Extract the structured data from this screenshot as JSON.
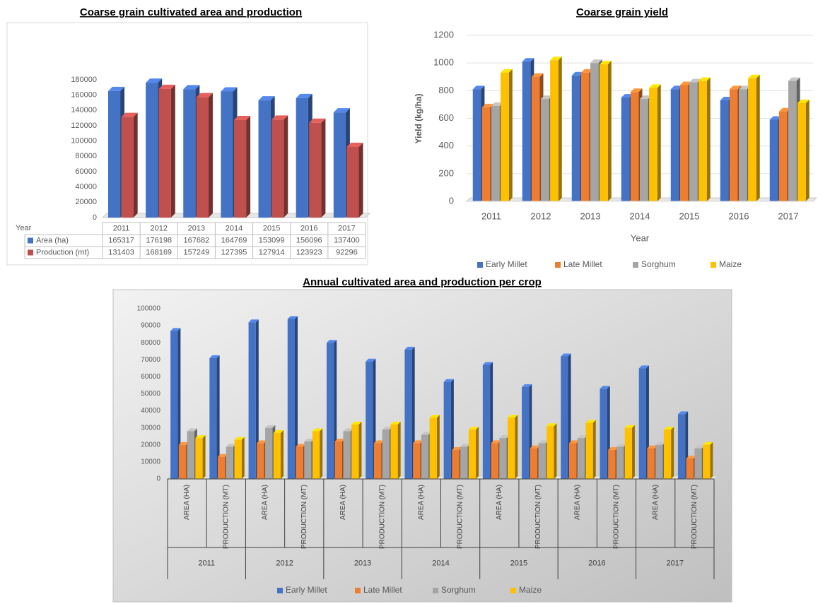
{
  "chart_data": [
    {
      "type": "bar",
      "title": "Coarse grain cultivated area and production",
      "x_label": "Year",
      "categories": [
        "2011",
        "2012",
        "2013",
        "2014",
        "2015",
        "2016",
        "2017"
      ],
      "series": [
        {
          "name": "Area (ha)",
          "color": "#4472c4",
          "values": [
            165317,
            176198,
            167682,
            164769,
            153099,
            156096,
            137400
          ]
        },
        {
          "name": "Production (mt)",
          "color": "#c0504d",
          "values": [
            131403,
            168169,
            157249,
            127395,
            127914,
            123923,
            92296
          ]
        }
      ],
      "ylim": [
        0,
        180000
      ],
      "yticks": [
        0,
        20000,
        40000,
        60000,
        80000,
        100000,
        120000,
        140000,
        160000,
        180000
      ],
      "grid": false,
      "data_table": true
    },
    {
      "type": "bar",
      "title": "Coarse grain yield",
      "x_label": "Year",
      "y_label": "Yield (kg/ha)",
      "categories": [
        "2011",
        "2012",
        "2013",
        "2014",
        "2015",
        "2016",
        "2017"
      ],
      "series": [
        {
          "name": "Early Millet",
          "color": "#4472c4",
          "values": [
            810,
            1010,
            910,
            750,
            810,
            730,
            590
          ]
        },
        {
          "name": "Late Millet",
          "color": "#ed7d31",
          "values": [
            680,
            900,
            930,
            790,
            840,
            810,
            650
          ]
        },
        {
          "name": "Sorghum",
          "color": "#a5a5a5",
          "values": [
            690,
            740,
            1000,
            740,
            860,
            810,
            870
          ]
        },
        {
          "name": "Maize",
          "color": "#ffc000",
          "values": [
            930,
            1020,
            990,
            820,
            870,
            890,
            710
          ]
        }
      ],
      "ylim": [
        0,
        1200
      ],
      "yticks": [
        0,
        200,
        400,
        600,
        800,
        1000,
        1200
      ],
      "grid": true,
      "legend": "bottom"
    },
    {
      "type": "bar",
      "title": "Annual cultivated area and production per crop",
      "categories": [
        "AREA (HA)",
        "PRODUCTION (MT)",
        "AREA (HA)",
        "PRODUCTION (MT)",
        "AREA (HA)",
        "PRODUCTION (MT)",
        "AREA (HA)",
        "PRODUCTION (MT)",
        "AREA (HA)",
        "PRODUCTION (MT)",
        "AREA (HA)",
        "PRODUCTION (MT)",
        "AREA (HA)",
        "PRODUCTION (MT)"
      ],
      "groups": [
        "2011",
        "2012",
        "2013",
        "2014",
        "2015",
        "2016",
        "2017"
      ],
      "series": [
        {
          "name": "Early Millet",
          "color": "#4472c4",
          "values": [
            87000,
            71000,
            92000,
            94000,
            80000,
            69000,
            76000,
            57000,
            67000,
            54000,
            72000,
            53000,
            65000,
            38000
          ]
        },
        {
          "name": "Late Millet",
          "color": "#ed7d31",
          "values": [
            20000,
            13000,
            21000,
            19000,
            22000,
            21000,
            21000,
            17000,
            21000,
            18000,
            21000,
            17000,
            18000,
            12000
          ]
        },
        {
          "name": "Sorghum",
          "color": "#a5a5a5",
          "values": [
            28000,
            19000,
            30000,
            22000,
            28000,
            29000,
            26000,
            19000,
            24000,
            21000,
            24000,
            19000,
            20000,
            18000
          ]
        },
        {
          "name": "Maize",
          "color": "#ffc000",
          "values": [
            24000,
            23000,
            27000,
            28000,
            32000,
            32000,
            36000,
            29000,
            36000,
            31000,
            33000,
            30000,
            29000,
            20000
          ]
        }
      ],
      "ylim": [
        0,
        100000
      ],
      "yticks": [
        0,
        10000,
        20000,
        30000,
        40000,
        50000,
        60000,
        70000,
        80000,
        90000,
        100000
      ],
      "grid": false,
      "legend": "bottom"
    }
  ]
}
